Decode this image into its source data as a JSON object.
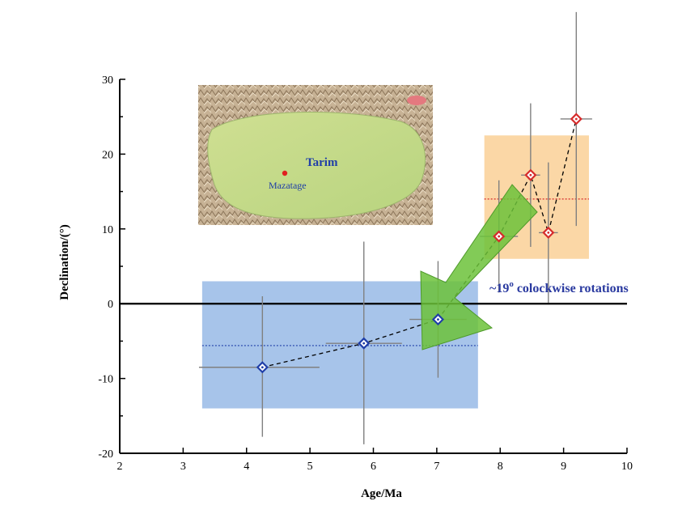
{
  "chart_data": {
    "type": "scatter",
    "xlabel": "Age/Ma",
    "ylabel": "Declination/(°)",
    "xlim": [
      2,
      10
    ],
    "ylim": [
      -20,
      30
    ],
    "x_ticks": [
      "2",
      "3",
      "4",
      "5",
      "6",
      "7",
      "8",
      "9",
      "10"
    ],
    "y_ticks": [
      "30",
      "20",
      "10",
      "0",
      "-10",
      "-20"
    ],
    "grid": false,
    "series": [
      {
        "points": [
          {
            "x": 4.25,
            "y": -8.5,
            "xerr": [
              1.0,
              0.9
            ],
            "yerr": [
              9.3,
              9.5
            ]
          },
          {
            "x": 5.85,
            "y": -5.3,
            "xerr": [
              0.6,
              0.6
            ],
            "yerr": [
              13.5,
              13.6
            ]
          },
          {
            "x": 7.02,
            "y": -2.1,
            "xerr": [
              0.45,
              0.45
            ],
            "yerr": [
              7.8,
              7.8
            ]
          }
        ],
        "color": "#1f3ea8",
        "mean": -5.6,
        "box": {
          "x": [
            3.3,
            7.65
          ],
          "y": [
            -14,
            3
          ]
        },
        "box_color": "#a7c4ea"
      },
      {
        "points": [
          {
            "x": 7.98,
            "y": 9.0,
            "xerr": [
              0.3,
              0.3
            ],
            "yerr": [
              7.5,
              7.5
            ]
          },
          {
            "x": 8.48,
            "y": 17.2,
            "xerr": [
              0.15,
              0.15
            ],
            "yerr": [
              9.6,
              9.6
            ]
          },
          {
            "x": 8.76,
            "y": 9.5,
            "xerr": [
              0.15,
              0.15
            ],
            "yerr": [
              9.4,
              9.4
            ]
          },
          {
            "x": 9.2,
            "y": 24.7,
            "xerr": [
              0.25,
              0.25
            ],
            "yerr": [
              14.3,
              14.3
            ]
          }
        ],
        "color": "#d62b2b",
        "mean": 14.0,
        "box": {
          "x": [
            7.75,
            9.4
          ],
          "y": [
            6,
            22.5
          ]
        },
        "box_color": "#fbd7a6"
      }
    ],
    "annotations": [
      "~19° colockwise rotations"
    ],
    "arrow_color": "#6cc23a"
  },
  "annotation": {
    "prefix": "~19",
    "superscript": "o",
    "suffix": " colockwise rotations",
    "color": "#2a3aa0"
  },
  "map_inset": {
    "title": "Tarim",
    "site": "Mazatage",
    "title_color": "#1f3ea8",
    "site_color": "#1f3ea8",
    "site_marker_color": "#e02020"
  }
}
